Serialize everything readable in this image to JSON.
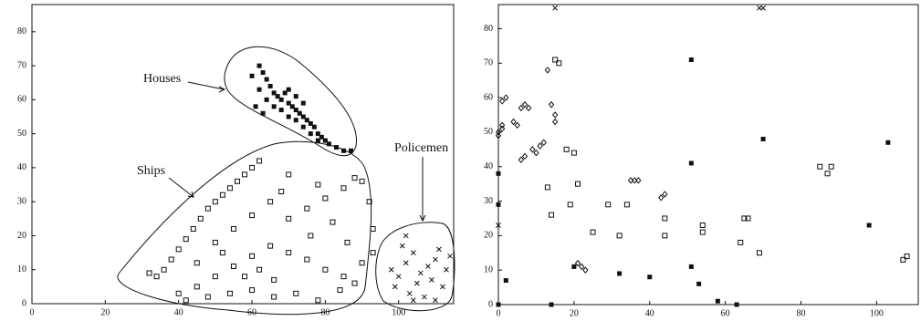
{
  "chart_data": [
    {
      "type": "scatter",
      "xlim": [
        0,
        115
      ],
      "ylim": [
        0,
        88
      ],
      "xticks": [
        0,
        20,
        40,
        60,
        80,
        100
      ],
      "yticks": [
        0,
        10,
        20,
        30,
        40,
        50,
        60,
        70,
        80
      ],
      "series": [
        {
          "name": "Houses",
          "marker": "filled-square",
          "color": "#111",
          "x": [
            60,
            62,
            63,
            64,
            62,
            65,
            66,
            67,
            68,
            69,
            70,
            71,
            72,
            73,
            74,
            75,
            76,
            77,
            78,
            79,
            80,
            81,
            83,
            85,
            64,
            66,
            68,
            70,
            72,
            74,
            76,
            78,
            61,
            63,
            70,
            72,
            74,
            87
          ],
          "y": [
            67,
            70,
            68,
            66,
            63,
            64,
            62,
            61,
            60,
            62,
            59,
            58,
            57,
            56,
            55,
            54,
            53,
            52,
            50,
            49,
            48,
            47,
            46,
            45,
            60,
            58,
            57,
            55,
            54,
            52,
            50,
            48,
            58,
            56,
            63,
            61,
            59,
            45
          ]
        },
        {
          "name": "Ships",
          "marker": "open-square",
          "color": "#111",
          "x": [
            32,
            34,
            36,
            38,
            40,
            42,
            44,
            46,
            48,
            50,
            52,
            54,
            56,
            58,
            60,
            62,
            40,
            45,
            50,
            55,
            60,
            65,
            70,
            75,
            80,
            85,
            42,
            48,
            54,
            60,
            66,
            72,
            78,
            84,
            88,
            70,
            75,
            80,
            85,
            88,
            90,
            92,
            93,
            93,
            50,
            55,
            60,
            65,
            68,
            58,
            62,
            45,
            52,
            66,
            76,
            82,
            86,
            90,
            78,
            70
          ],
          "y": [
            9,
            8,
            10,
            13,
            16,
            19,
            22,
            25,
            28,
            30,
            32,
            34,
            36,
            38,
            40,
            42,
            3,
            5,
            8,
            11,
            14,
            17,
            15,
            13,
            10,
            8,
            1,
            2,
            3,
            4,
            2,
            3,
            1,
            4,
            6,
            25,
            28,
            31,
            34,
            37,
            36,
            30,
            22,
            15,
            18,
            22,
            26,
            30,
            33,
            8,
            10,
            12,
            15,
            7,
            20,
            24,
            18,
            12,
            35,
            38
          ]
        },
        {
          "name": "Policemen",
          "marker": "cross",
          "color": "#111",
          "x": [
            98,
            100,
            102,
            104,
            106,
            108,
            110,
            112,
            103,
            105,
            107,
            109,
            111,
            113,
            101,
            99,
            104,
            110,
            114,
            102
          ],
          "y": [
            10,
            8,
            12,
            15,
            9,
            11,
            13,
            5,
            3,
            6,
            2,
            7,
            16,
            10,
            17,
            5,
            1,
            1,
            14,
            20
          ]
        }
      ]
    },
    {
      "type": "scatter",
      "xlim": [
        0,
        111
      ],
      "ylim": [
        0,
        87
      ],
      "xticks": [
        0,
        20,
        40,
        60,
        80,
        100
      ],
      "yticks": [
        0,
        10,
        20,
        30,
        40,
        50,
        60,
        70,
        80
      ],
      "series": [
        {
          "marker": "diamond",
          "color": "#111",
          "x": [
            0,
            0,
            1,
            1,
            2,
            1,
            4,
            5,
            6,
            7,
            8,
            6,
            7,
            9,
            10,
            11,
            12,
            14,
            15,
            15,
            21,
            22,
            23,
            35,
            36,
            37,
            43,
            44,
            13
          ],
          "y": [
            49,
            50,
            51,
            59,
            60,
            52,
            53,
            52,
            57,
            58,
            57,
            42,
            43,
            45,
            44,
            46,
            47,
            58,
            55,
            53,
            12,
            11,
            10,
            36,
            36,
            36,
            31,
            32,
            68
          ]
        },
        {
          "marker": "open-square",
          "color": "#111",
          "x": [
            13,
            14,
            15,
            16,
            18,
            20,
            19,
            21,
            25,
            29,
            32,
            34,
            44,
            44,
            54,
            54,
            64,
            65,
            66,
            69,
            85,
            87,
            88,
            107,
            108
          ],
          "y": [
            34,
            26,
            71,
            70,
            45,
            44,
            29,
            35,
            21,
            29,
            20,
            29,
            25,
            20,
            23,
            21,
            18,
            25,
            25,
            15,
            40,
            38,
            40,
            13,
            14
          ]
        },
        {
          "marker": "filled-square",
          "color": "#111",
          "x": [
            0,
            0,
            0,
            14,
            20,
            40,
            51,
            53,
            58,
            63,
            32,
            51,
            70,
            103,
            51,
            98,
            2
          ],
          "y": [
            38,
            29,
            0,
            0,
            11,
            8,
            11,
            6,
            1,
            0,
            9,
            71,
            48,
            47,
            41,
            23,
            7
          ]
        },
        {
          "marker": "cross",
          "color": "#111",
          "x": [
            15,
            69,
            70,
            0
          ],
          "y": [
            86,
            86,
            86,
            23
          ]
        }
      ]
    }
  ]
}
